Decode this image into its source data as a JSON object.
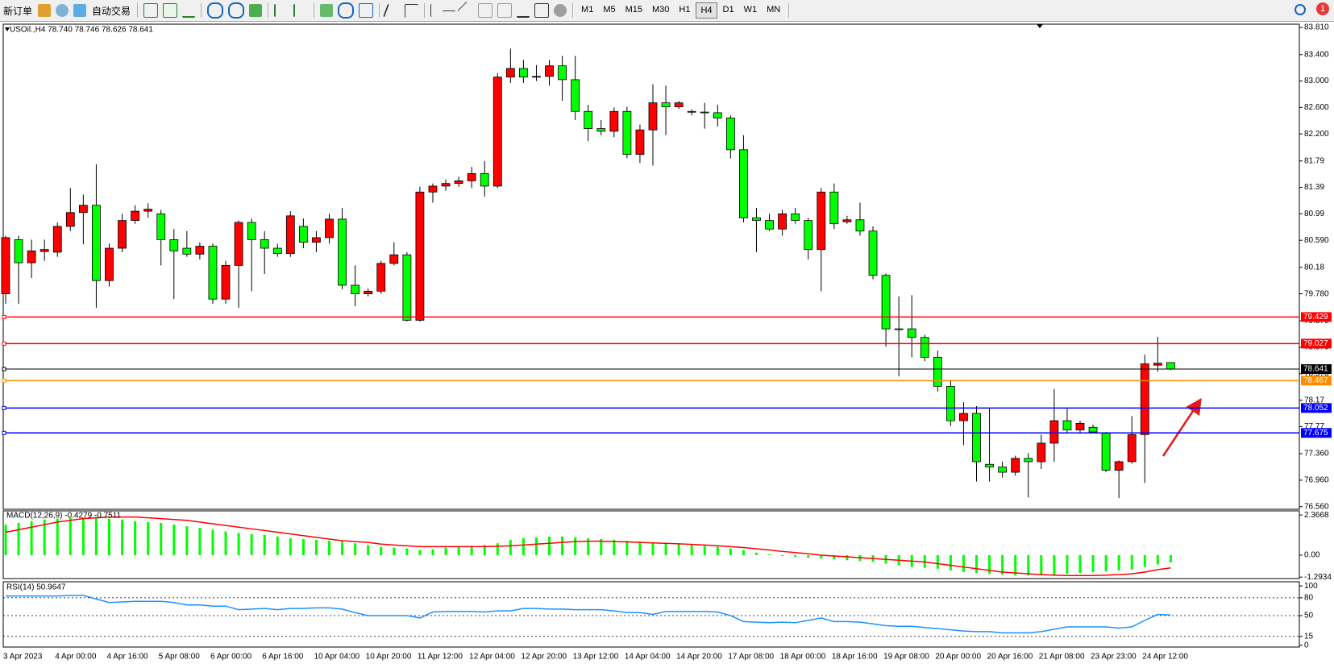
{
  "toolbar": {
    "new_order": "新订单",
    "auto_trading": "自动交易",
    "timeframes": [
      "M1",
      "M5",
      "M15",
      "M30",
      "H1",
      "H4",
      "D1",
      "W1",
      "MN"
    ],
    "active_timeframe": "H4",
    "notifications": 1
  },
  "chart_data": [
    {
      "type": "candlestick",
      "header": "USOil.,H4  78.740 78.746 78.626 78.641",
      "categories": [
        "3 Apr 2023",
        null,
        null,
        null,
        "4 Apr 00:00",
        null,
        null,
        null,
        "4 Apr 16:00",
        null,
        null,
        null,
        "5 Apr 08:00",
        null,
        null,
        null,
        "6 Apr 00:00",
        null,
        null,
        null,
        "6 Apr 16:00",
        null,
        null,
        null,
        "10 Apr 04:00",
        null,
        null,
        null,
        "10 Apr 20:00",
        null,
        null,
        null,
        "11 Apr 12:00",
        null,
        null,
        null,
        "12 Apr 04:00",
        null,
        null,
        null,
        "12 Apr 20:00",
        null,
        null,
        null,
        "13 Apr 12:00",
        null,
        null,
        null,
        "14 Apr 04:00",
        null,
        null,
        null,
        "14 Apr 20:00",
        null,
        null,
        null,
        "17 Apr 08:00",
        null,
        null,
        null,
        "18 Apr 00:00",
        null,
        null,
        null,
        "18 Apr 16:00",
        null,
        null,
        null,
        "19 Apr 08:00",
        null,
        null,
        null,
        "20 Apr 00:00",
        null,
        null,
        null,
        "20 Apr 16:00",
        null,
        null,
        null,
        "21 Apr 08:00",
        null,
        null,
        null,
        "23 Apr 23:00",
        null,
        null,
        null,
        "24 Apr 12:00",
        null,
        null
      ],
      "open": [
        79.78,
        80.6,
        80.25,
        80.42,
        80.41,
        80.8,
        81.01,
        81.12,
        79.98,
        80.47,
        80.89,
        81.03,
        80.99,
        80.6,
        80.47,
        80.38,
        80.5,
        79.7,
        80.21,
        80.86,
        80.6,
        80.47,
        80.39,
        80.8,
        80.56,
        80.63,
        80.91,
        79.91,
        79.78,
        79.82,
        80.24,
        80.37,
        79.38,
        81.32,
        81.41,
        81.45,
        81.49,
        81.6,
        81.41,
        83.06,
        83.19,
        83.06,
        83.07,
        83.23,
        83.02,
        82.54,
        82.28,
        82.24,
        82.54,
        81.89,
        82.26,
        82.67,
        82.61,
        82.54,
        82.53,
        82.52,
        82.44,
        81.96,
        80.93,
        80.89,
        80.76,
        80.99,
        80.89,
        80.45,
        81.32,
        80.87,
        80.9,
        80.73,
        80.06,
        79.25,
        79.25,
        79.12,
        78.82,
        78.38,
        77.86,
        77.97,
        77.2,
        77.16,
        77.08,
        77.29,
        77.24,
        77.52,
        77.86,
        77.72,
        77.76,
        77.67,
        77.11,
        77.24,
        77.65,
        78.7,
        78.74
      ],
      "high": [
        80.66,
        80.66,
        80.6,
        80.6,
        80.86,
        81.38,
        81.28,
        81.74,
        80.54,
        80.99,
        81.12,
        81.15,
        81.05,
        80.76,
        80.73,
        80.56,
        80.54,
        80.28,
        80.89,
        80.92,
        80.73,
        80.54,
        81.03,
        80.92,
        80.73,
        80.99,
        81.08,
        80.21,
        79.86,
        80.28,
        80.56,
        80.41,
        81.4,
        81.45,
        81.51,
        81.55,
        81.7,
        81.79,
        83.12,
        83.49,
        83.32,
        83.24,
        83.32,
        83.38,
        83.38,
        82.64,
        82.41,
        82.6,
        82.61,
        82.34,
        82.95,
        82.93,
        82.7,
        82.57,
        82.67,
        82.64,
        82.48,
        82.18,
        81.08,
        80.99,
        81.05,
        81.08,
        80.93,
        81.38,
        81.45,
        80.96,
        81.16,
        80.8,
        80.09,
        79.74,
        79.76,
        79.16,
        78.92,
        78.47,
        78.14,
        78.08,
        78.05,
        77.24,
        77.33,
        77.37,
        77.65,
        78.34,
        78.04,
        77.86,
        77.8,
        77.69,
        77.26,
        77.93,
        78.86,
        79.13,
        78.746
      ],
      "low": [
        79.63,
        79.63,
        80.02,
        80.28,
        80.34,
        80.73,
        80.53,
        79.57,
        79.89,
        80.41,
        80.84,
        80.93,
        80.21,
        79.7,
        80.34,
        80.3,
        79.63,
        79.63,
        79.57,
        79.82,
        80.08,
        80.34,
        80.34,
        80.47,
        80.41,
        80.54,
        79.85,
        79.59,
        79.74,
        79.78,
        80.21,
        79.36,
        79.36,
        81.16,
        81.34,
        81.4,
        81.38,
        81.25,
        81.38,
        82.97,
        82.97,
        83.0,
        82.93,
        82.7,
        82.41,
        82.09,
        82.18,
        82.15,
        81.83,
        81.76,
        81.72,
        82.18,
        82.58,
        82.48,
        82.28,
        82.31,
        81.83,
        80.86,
        80.41,
        80.73,
        80.66,
        80.84,
        80.3,
        79.82,
        80.76,
        80.84,
        80.66,
        80.0,
        78.98,
        78.53,
        78.82,
        78.76,
        78.3,
        77.78,
        77.49,
        76.94,
        76.94,
        77.0,
        77.03,
        76.7,
        77.13,
        77.24,
        77.67,
        77.67,
        77.67,
        77.08,
        76.69,
        77.21,
        76.92,
        78.6,
        78.626
      ],
      "close": [
        80.63,
        80.25,
        80.43,
        80.45,
        80.8,
        81.01,
        81.12,
        79.98,
        80.47,
        80.89,
        81.03,
        81.06,
        80.6,
        80.43,
        80.38,
        80.5,
        79.7,
        80.21,
        80.86,
        80.6,
        80.47,
        80.39,
        80.96,
        80.56,
        80.63,
        80.91,
        79.91,
        79.78,
        79.82,
        80.24,
        80.37,
        79.38,
        81.32,
        81.41,
        81.45,
        81.49,
        81.6,
        81.41,
        83.06,
        83.19,
        83.06,
        83.07,
        83.23,
        83.02,
        82.54,
        82.28,
        82.24,
        82.54,
        81.89,
        82.26,
        82.67,
        82.61,
        82.67,
        82.53,
        82.52,
        82.44,
        81.96,
        80.93,
        80.89,
        80.76,
        80.99,
        80.89,
        80.45,
        81.32,
        80.84,
        80.9,
        80.73,
        80.06,
        79.25,
        79.24,
        79.12,
        78.82,
        78.38,
        77.86,
        77.97,
        77.24,
        77.16,
        77.08,
        77.29,
        77.24,
        77.52,
        77.86,
        77.72,
        77.82,
        77.69,
        77.11,
        77.24,
        77.65,
        78.72,
        78.73,
        78.641
      ],
      "up_color": "#ff0000",
      "down_color": "#00ff00",
      "ylim": [
        76.52,
        83.86
      ],
      "yticks": [
        {
          "value": 83.81,
          "label": "83.810"
        },
        {
          "value": 83.4,
          "label": "83.400"
        },
        {
          "value": 83.0,
          "label": "83.000"
        },
        {
          "value": 82.6,
          "label": "82.600"
        },
        {
          "value": 82.2,
          "label": "82.200"
        },
        81.79,
        81.39,
        80.99,
        {
          "value": 80.59,
          "label": "80.590"
        },
        80.18,
        {
          "value": 79.78,
          "label": "79.780"
        },
        {
          "value": 79.37,
          "label": "79.370"
        },
        {
          "value": 78.97,
          "label": "78.970"
        },
        {
          "value": 78.57,
          "label": "78.570"
        },
        78.17,
        77.77,
        {
          "value": 77.36,
          "label": "77.360"
        },
        {
          "value": 76.96,
          "label": "76.960"
        },
        {
          "value": 76.56,
          "label": "76.560"
        }
      ],
      "levels": [
        {
          "value": 79.429,
          "color": "#ff0000"
        },
        {
          "value": 79.027,
          "color": "#ff0000"
        },
        {
          "value": 78.641,
          "color": "#000000"
        },
        {
          "value": 78.467,
          "color": "#ff8c00"
        },
        {
          "value": 78.052,
          "color": "#0000ff"
        },
        {
          "value": 77.675,
          "color": "#0000ff"
        }
      ]
    },
    {
      "type": "macd",
      "header": "MACD(12,26,9) -0.4279 -0.7511",
      "histogram": [
        1.8,
        1.9,
        2.0,
        2.1,
        2.15,
        2.2,
        2.2,
        2.2,
        2.15,
        2.1,
        2.0,
        1.95,
        1.9,
        1.8,
        1.7,
        1.6,
        1.5,
        1.4,
        1.3,
        1.25,
        1.2,
        1.1,
        1.0,
        0.95,
        0.9,
        0.85,
        0.8,
        0.7,
        0.6,
        0.5,
        0.45,
        0.4,
        0.3,
        0.35,
        0.45,
        0.5,
        0.55,
        0.6,
        0.7,
        0.9,
        1.0,
        1.05,
        1.1,
        1.1,
        1.05,
        1.0,
        0.95,
        0.9,
        0.85,
        0.8,
        0.75,
        0.7,
        0.65,
        0.6,
        0.55,
        0.5,
        0.4,
        0.3,
        0.15,
        0.05,
        -0.05,
        -0.1,
        -0.15,
        -0.2,
        -0.25,
        -0.3,
        -0.35,
        -0.4,
        -0.5,
        -0.6,
        -0.7,
        -0.75,
        -0.8,
        -0.9,
        -1.0,
        -1.05,
        -1.1,
        -1.15,
        -1.2,
        -1.2,
        -1.2,
        -1.15,
        -1.1,
        -1.05,
        -1.0,
        -0.95,
        -0.9,
        -0.85,
        -0.7,
        -0.55,
        -0.4279
      ],
      "signal": [
        1.35,
        1.5,
        1.65,
        1.8,
        1.95,
        2.05,
        2.15,
        2.2,
        2.25,
        2.25,
        2.25,
        2.2,
        2.15,
        2.1,
        2.05,
        1.95,
        1.85,
        1.75,
        1.65,
        1.55,
        1.45,
        1.35,
        1.25,
        1.15,
        1.05,
        0.95,
        0.85,
        0.8,
        0.75,
        0.65,
        0.6,
        0.55,
        0.5,
        0.5,
        0.5,
        0.5,
        0.5,
        0.5,
        0.52,
        0.55,
        0.6,
        0.65,
        0.7,
        0.75,
        0.8,
        0.82,
        0.82,
        0.8,
        0.78,
        0.75,
        0.72,
        0.7,
        0.67,
        0.63,
        0.6,
        0.55,
        0.5,
        0.45,
        0.38,
        0.3,
        0.22,
        0.15,
        0.08,
        0.0,
        -0.05,
        -0.1,
        -0.15,
        -0.2,
        -0.25,
        -0.3,
        -0.35,
        -0.4,
        -0.5,
        -0.6,
        -0.7,
        -0.8,
        -0.9,
        -1.0,
        -1.05,
        -1.1,
        -1.15,
        -1.18,
        -1.2,
        -1.2,
        -1.2,
        -1.18,
        -1.15,
        -1.1,
        -1.0,
        -0.85,
        -0.7511
      ],
      "histogram_color": "#00ff00",
      "signal_color": "#ff0000",
      "ylim": [
        -1.38,
        2.61
      ],
      "yticks": [
        2.3668,
        {
          "value": 0,
          "label": "0.00"
        },
        -1.2934
      ]
    },
    {
      "type": "rsi",
      "header": "RSI(14) 50.9647",
      "values": [
        83,
        83,
        83,
        83,
        83,
        84,
        84,
        78,
        72,
        73,
        74,
        74,
        74,
        72,
        68,
        68,
        66,
        66,
        60,
        61,
        62,
        60,
        62,
        62,
        63,
        63,
        61,
        55,
        50,
        50,
        50,
        50,
        46,
        56,
        57,
        57,
        57,
        56,
        58,
        58,
        62,
        62,
        61,
        61,
        60,
        60,
        60,
        58,
        55,
        55,
        52,
        57,
        57,
        57,
        57,
        56,
        50,
        40,
        39,
        38,
        39,
        38,
        42,
        46,
        40,
        40,
        39,
        36,
        33,
        32,
        32,
        30,
        28,
        26,
        24,
        23,
        23,
        21,
        21,
        21,
        23,
        27,
        31,
        31,
        31,
        31,
        29,
        31,
        42,
        52,
        50.9647
      ],
      "color": "#1e90ff",
      "ylim": [
        -3,
        107
      ],
      "yticks": [
        100,
        80,
        50,
        15,
        0
      ],
      "level_lines": [
        80,
        50,
        15
      ]
    }
  ]
}
